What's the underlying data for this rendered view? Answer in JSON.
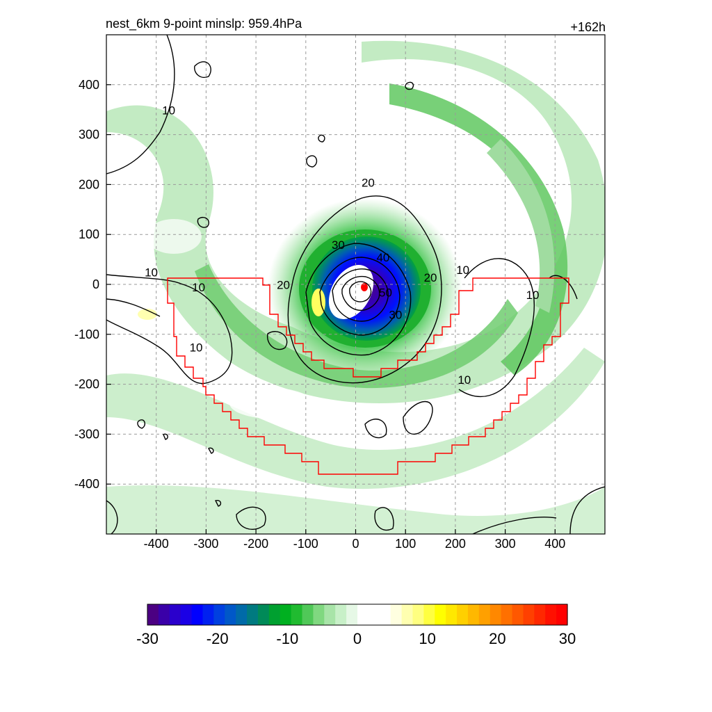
{
  "header": {
    "title": "nest_6km  9-point minslp: 959.4hPa",
    "time": "+162h"
  },
  "chart_data": {
    "type": "heatmap",
    "title": "nest_6km  9-point minslp: 959.4hPa",
    "xlabel": "",
    "ylabel": "",
    "xlim": [
      -500,
      500
    ],
    "ylim": [
      -500,
      500
    ],
    "x_ticks": [
      -400,
      -300,
      -200,
      -100,
      0,
      100,
      200,
      300,
      400
    ],
    "y_ticks": [
      400,
      300,
      200,
      100,
      0,
      -100,
      -200,
      -300,
      -400
    ],
    "grid": true,
    "colorbar": {
      "range": [
        -30,
        30
      ],
      "ticks": [
        -30,
        -20,
        -10,
        0,
        10,
        20,
        30
      ],
      "colors": [
        "#4b0082",
        "#3a00a8",
        "#2a00cc",
        "#1a00e6",
        "#0000ff",
        "#0020f0",
        "#0040e0",
        "#0058c8",
        "#006aa8",
        "#007a80",
        "#008a58",
        "#00a030",
        "#00b020",
        "#20bb30",
        "#50c858",
        "#80d880",
        "#a8e4a8",
        "#c8f0c8",
        "#e6f8e6",
        "#ffffff",
        "#ffffff",
        "#ffffff",
        "#ffffe0",
        "#ffffb0",
        "#ffff80",
        "#ffff40",
        "#ffff00",
        "#ffe800",
        "#ffd000",
        "#ffb800",
        "#ffa000",
        "#ff8800",
        "#ff7000",
        "#ff5800",
        "#ff4000",
        "#ff2800",
        "#ff1000",
        "#ff0000"
      ]
    },
    "contour_labels": [
      {
        "value": "10",
        "x": -375,
        "y": 345
      },
      {
        "value": "10",
        "x": -410,
        "y": 20
      },
      {
        "value": "10",
        "x": -315,
        "y": -10
      },
      {
        "value": "10",
        "x": -320,
        "y": -130
      },
      {
        "value": "10",
        "x": 215,
        "y": 25
      },
      {
        "value": "10",
        "x": 355,
        "y": -25
      },
      {
        "value": "10",
        "x": 218,
        "y": -195
      },
      {
        "value": "20",
        "x": 25,
        "y": 200
      },
      {
        "value": "20",
        "x": -145,
        "y": -5
      },
      {
        "value": "20",
        "x": 150,
        "y": 10
      },
      {
        "value": "30",
        "x": -35,
        "y": 75
      },
      {
        "value": "30",
        "x": 80,
        "y": -65
      },
      {
        "value": "40",
        "x": 55,
        "y": 50
      },
      {
        "value": "50",
        "x": 60,
        "y": -20
      }
    ]
  }
}
